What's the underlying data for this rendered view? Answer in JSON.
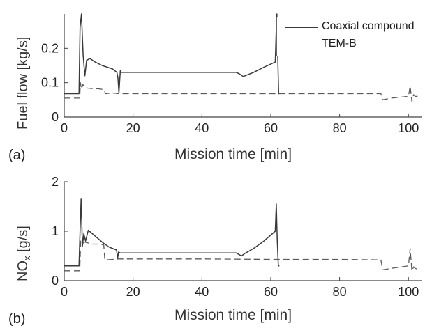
{
  "chart_data": [
    {
      "type": "line",
      "panel_label": "(a)",
      "xlabel": "Mission time [min]",
      "ylabel": "Fuel flow [kg/s]",
      "xlim": [
        0,
        104
      ],
      "ylim": [
        0,
        0.3
      ],
      "xticks": [
        0,
        20,
        40,
        60,
        80,
        100
      ],
      "yticks": [
        0,
        0.1,
        0.2
      ],
      "ytick_labels": [
        "0",
        "0.1",
        "0.2"
      ],
      "legend_position": "top-right",
      "series": [
        {
          "name": "Coaxial compound",
          "style": "solid",
          "x": [
            0,
            4.3,
            4.6,
            5.0,
            5.5,
            6.0,
            6.5,
            7.5,
            9,
            11,
            14,
            15.3,
            15.6,
            15.9,
            16.3,
            16.6,
            17,
            20,
            30,
            40,
            50,
            51,
            52,
            55,
            58,
            61.3,
            61.6,
            61.8,
            62.1,
            62.3,
            62.5
          ],
          "y": [
            0.068,
            0.068,
            0.26,
            0.3,
            0.18,
            0.12,
            0.165,
            0.17,
            0.16,
            0.15,
            0.14,
            0.13,
            0.115,
            0.07,
            0.135,
            0.13,
            0.13,
            0.13,
            0.13,
            0.13,
            0.13,
            0.125,
            0.118,
            0.13,
            0.145,
            0.16,
            0.26,
            0.3,
            0.15,
            0.068,
            0.068
          ]
        },
        {
          "name": "TEM-B",
          "style": "dashed",
          "x": [
            0,
            4.5,
            4.7,
            5.0,
            5.4,
            6,
            8,
            10,
            11.5,
            12,
            14,
            16,
            20,
            40,
            60,
            80,
            92,
            92.5,
            95,
            100,
            100.5,
            101,
            101.5,
            102,
            103
          ],
          "y": [
            0.055,
            0.055,
            0.1,
            0.08,
            0.095,
            0.085,
            0.083,
            0.082,
            0.08,
            0.068,
            0.07,
            0.068,
            0.068,
            0.068,
            0.068,
            0.068,
            0.068,
            0.05,
            0.055,
            0.06,
            0.09,
            0.045,
            0.065,
            0.06,
            0.06
          ]
        }
      ]
    },
    {
      "type": "line",
      "panel_label": "(b)",
      "xlabel": "Mission time [min]",
      "ylabel_main": "NO",
      "ylabel_sub": "x",
      "ylabel_units": " [g/s]",
      "xlim": [
        0,
        104
      ],
      "ylim": [
        0,
        2
      ],
      "xticks": [
        0,
        20,
        40,
        60,
        80,
        100
      ],
      "yticks": [
        0,
        1,
        2
      ],
      "ytick_labels": [
        "0",
        "1",
        "2"
      ],
      "series": [
        {
          "name": "Coaxial compound",
          "style": "solid",
          "x": [
            0,
            4.3,
            4.6,
            4.9,
            5.3,
            5.7,
            6.2,
            7,
            9,
            11,
            13,
            15.2,
            15.5,
            15.8,
            16.2,
            17,
            20,
            30,
            40,
            50,
            51.5,
            52.5,
            55,
            58,
            61.3,
            61.6,
            61.9,
            62.2,
            62.5
          ],
          "y": [
            0.3,
            0.3,
            1.0,
            1.65,
            0.7,
            0.95,
            0.8,
            1.02,
            0.9,
            0.78,
            0.68,
            0.62,
            0.45,
            0.58,
            0.56,
            0.56,
            0.56,
            0.56,
            0.56,
            0.56,
            0.5,
            0.55,
            0.65,
            0.8,
            1.0,
            1.55,
            0.8,
            0.3,
            0.3
          ]
        },
        {
          "name": "TEM-B",
          "style": "dashed",
          "x": [
            0,
            4.5,
            4.8,
            5.2,
            6,
            8,
            10,
            11.5,
            11.8,
            14,
            16,
            20,
            40,
            60,
            80,
            92,
            92.5,
            95,
            100,
            100.5,
            101,
            101.5,
            102,
            103
          ],
          "y": [
            0.2,
            0.2,
            0.8,
            0.75,
            0.78,
            0.74,
            0.74,
            0.72,
            0.42,
            0.43,
            0.44,
            0.44,
            0.44,
            0.43,
            0.43,
            0.42,
            0.22,
            0.25,
            0.3,
            0.65,
            0.2,
            0.28,
            0.25,
            0.22
          ]
        }
      ]
    }
  ],
  "colors": {
    "solid_series": "#3a3a3a",
    "dashed_series": "#5a5a5a",
    "axes": "#444444",
    "tick_text": "#222222"
  }
}
